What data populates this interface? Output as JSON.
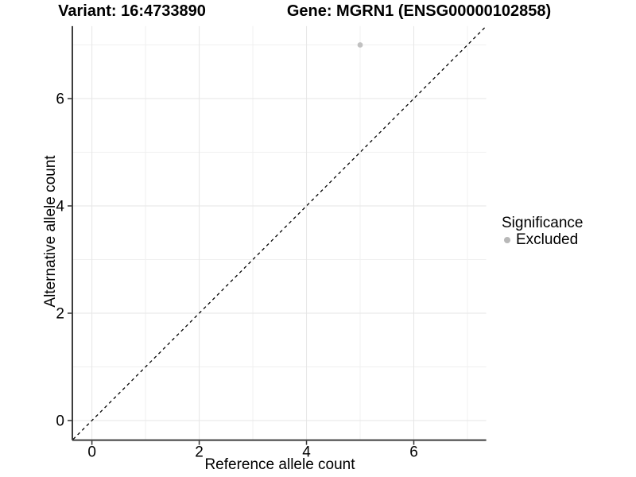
{
  "header": {
    "variant_title": "Variant: 16:4733890",
    "gene_title": "Gene: MGRN1 (ENSG00000102858)"
  },
  "chart_data": {
    "type": "scatter",
    "xlabel": "Reference allele count",
    "ylabel": "Alternative allele count",
    "xlim": [
      -0.35,
      7.35
    ],
    "ylim": [
      -0.35,
      7.35
    ],
    "xticks": [
      0,
      2,
      4,
      6
    ],
    "yticks": [
      0,
      2,
      4,
      6
    ],
    "minor_xticks": [
      1,
      3,
      5,
      7
    ],
    "minor_yticks": [
      1,
      3,
      5,
      7
    ],
    "grid": "major and minor gridlines on white background",
    "series": [
      {
        "name": "Excluded",
        "color": "#c1c1c1",
        "points": [
          [
            5,
            7
          ]
        ]
      }
    ],
    "reference_line": {
      "slope": 1,
      "intercept": 0,
      "style": "dashed",
      "color": "#000000"
    },
    "legend": {
      "title": "Significance",
      "position": "right",
      "entries": [
        {
          "label": "Excluded",
          "color": "#b8b8b8"
        }
      ]
    }
  },
  "colors": {
    "background": "#ffffff",
    "major_grid": "#e6e6e6",
    "minor_grid": "#f0f0f0",
    "axis_line": "#3d3d3d",
    "tick_mark": "#333333",
    "text": "#000000",
    "point": "#c1c1c1"
  }
}
